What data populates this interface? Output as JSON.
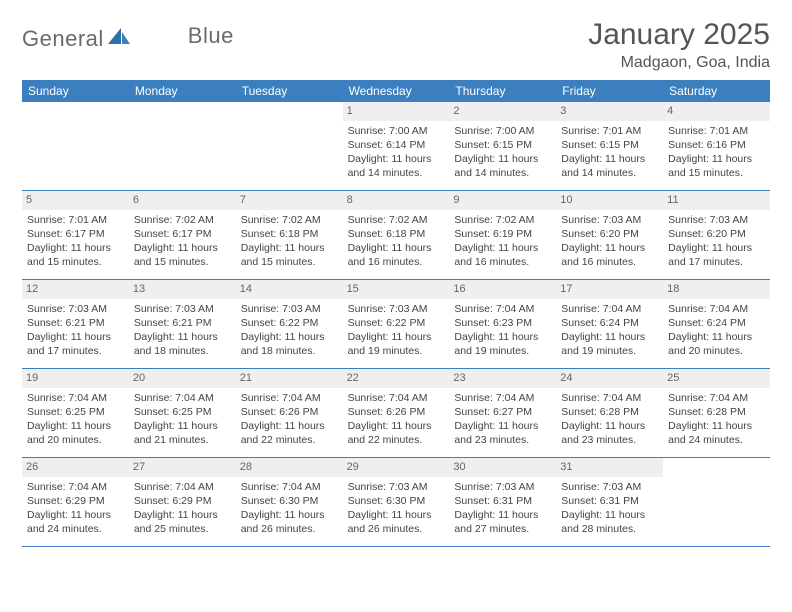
{
  "brand": {
    "word1": "General",
    "word2": "Blue"
  },
  "title": "January 2025",
  "location": "Madgaon, Goa, India",
  "colors": {
    "header_bg": "#3b7fbf",
    "header_fg": "#ffffff",
    "daynum_bg": "#efefef",
    "border": "#3b7fbf",
    "text": "#444444"
  },
  "day_names": [
    "Sunday",
    "Monday",
    "Tuesday",
    "Wednesday",
    "Thursday",
    "Friday",
    "Saturday"
  ],
  "weeks": [
    [
      {
        "n": "",
        "sr": "",
        "ss": "",
        "dl": "",
        "empty": true
      },
      {
        "n": "",
        "sr": "",
        "ss": "",
        "dl": "",
        "empty": true
      },
      {
        "n": "",
        "sr": "",
        "ss": "",
        "dl": "",
        "empty": true
      },
      {
        "n": "1",
        "sr": "Sunrise: 7:00 AM",
        "ss": "Sunset: 6:14 PM",
        "dl": "Daylight: 11 hours and 14 minutes."
      },
      {
        "n": "2",
        "sr": "Sunrise: 7:00 AM",
        "ss": "Sunset: 6:15 PM",
        "dl": "Daylight: 11 hours and 14 minutes."
      },
      {
        "n": "3",
        "sr": "Sunrise: 7:01 AM",
        "ss": "Sunset: 6:15 PM",
        "dl": "Daylight: 11 hours and 14 minutes."
      },
      {
        "n": "4",
        "sr": "Sunrise: 7:01 AM",
        "ss": "Sunset: 6:16 PM",
        "dl": "Daylight: 11 hours and 15 minutes."
      }
    ],
    [
      {
        "n": "5",
        "sr": "Sunrise: 7:01 AM",
        "ss": "Sunset: 6:17 PM",
        "dl": "Daylight: 11 hours and 15 minutes."
      },
      {
        "n": "6",
        "sr": "Sunrise: 7:02 AM",
        "ss": "Sunset: 6:17 PM",
        "dl": "Daylight: 11 hours and 15 minutes."
      },
      {
        "n": "7",
        "sr": "Sunrise: 7:02 AM",
        "ss": "Sunset: 6:18 PM",
        "dl": "Daylight: 11 hours and 15 minutes."
      },
      {
        "n": "8",
        "sr": "Sunrise: 7:02 AM",
        "ss": "Sunset: 6:18 PM",
        "dl": "Daylight: 11 hours and 16 minutes."
      },
      {
        "n": "9",
        "sr": "Sunrise: 7:02 AM",
        "ss": "Sunset: 6:19 PM",
        "dl": "Daylight: 11 hours and 16 minutes."
      },
      {
        "n": "10",
        "sr": "Sunrise: 7:03 AM",
        "ss": "Sunset: 6:20 PM",
        "dl": "Daylight: 11 hours and 16 minutes."
      },
      {
        "n": "11",
        "sr": "Sunrise: 7:03 AM",
        "ss": "Sunset: 6:20 PM",
        "dl": "Daylight: 11 hours and 17 minutes."
      }
    ],
    [
      {
        "n": "12",
        "sr": "Sunrise: 7:03 AM",
        "ss": "Sunset: 6:21 PM",
        "dl": "Daylight: 11 hours and 17 minutes."
      },
      {
        "n": "13",
        "sr": "Sunrise: 7:03 AM",
        "ss": "Sunset: 6:21 PM",
        "dl": "Daylight: 11 hours and 18 minutes."
      },
      {
        "n": "14",
        "sr": "Sunrise: 7:03 AM",
        "ss": "Sunset: 6:22 PM",
        "dl": "Daylight: 11 hours and 18 minutes."
      },
      {
        "n": "15",
        "sr": "Sunrise: 7:03 AM",
        "ss": "Sunset: 6:22 PM",
        "dl": "Daylight: 11 hours and 19 minutes."
      },
      {
        "n": "16",
        "sr": "Sunrise: 7:04 AM",
        "ss": "Sunset: 6:23 PM",
        "dl": "Daylight: 11 hours and 19 minutes."
      },
      {
        "n": "17",
        "sr": "Sunrise: 7:04 AM",
        "ss": "Sunset: 6:24 PM",
        "dl": "Daylight: 11 hours and 19 minutes."
      },
      {
        "n": "18",
        "sr": "Sunrise: 7:04 AM",
        "ss": "Sunset: 6:24 PM",
        "dl": "Daylight: 11 hours and 20 minutes."
      }
    ],
    [
      {
        "n": "19",
        "sr": "Sunrise: 7:04 AM",
        "ss": "Sunset: 6:25 PM",
        "dl": "Daylight: 11 hours and 20 minutes."
      },
      {
        "n": "20",
        "sr": "Sunrise: 7:04 AM",
        "ss": "Sunset: 6:25 PM",
        "dl": "Daylight: 11 hours and 21 minutes."
      },
      {
        "n": "21",
        "sr": "Sunrise: 7:04 AM",
        "ss": "Sunset: 6:26 PM",
        "dl": "Daylight: 11 hours and 22 minutes."
      },
      {
        "n": "22",
        "sr": "Sunrise: 7:04 AM",
        "ss": "Sunset: 6:26 PM",
        "dl": "Daylight: 11 hours and 22 minutes."
      },
      {
        "n": "23",
        "sr": "Sunrise: 7:04 AM",
        "ss": "Sunset: 6:27 PM",
        "dl": "Daylight: 11 hours and 23 minutes."
      },
      {
        "n": "24",
        "sr": "Sunrise: 7:04 AM",
        "ss": "Sunset: 6:28 PM",
        "dl": "Daylight: 11 hours and 23 minutes."
      },
      {
        "n": "25",
        "sr": "Sunrise: 7:04 AM",
        "ss": "Sunset: 6:28 PM",
        "dl": "Daylight: 11 hours and 24 minutes."
      }
    ],
    [
      {
        "n": "26",
        "sr": "Sunrise: 7:04 AM",
        "ss": "Sunset: 6:29 PM",
        "dl": "Daylight: 11 hours and 24 minutes."
      },
      {
        "n": "27",
        "sr": "Sunrise: 7:04 AM",
        "ss": "Sunset: 6:29 PM",
        "dl": "Daylight: 11 hours and 25 minutes."
      },
      {
        "n": "28",
        "sr": "Sunrise: 7:04 AM",
        "ss": "Sunset: 6:30 PM",
        "dl": "Daylight: 11 hours and 26 minutes."
      },
      {
        "n": "29",
        "sr": "Sunrise: 7:03 AM",
        "ss": "Sunset: 6:30 PM",
        "dl": "Daylight: 11 hours and 26 minutes."
      },
      {
        "n": "30",
        "sr": "Sunrise: 7:03 AM",
        "ss": "Sunset: 6:31 PM",
        "dl": "Daylight: 11 hours and 27 minutes."
      },
      {
        "n": "31",
        "sr": "Sunrise: 7:03 AM",
        "ss": "Sunset: 6:31 PM",
        "dl": "Daylight: 11 hours and 28 minutes."
      },
      {
        "n": "",
        "sr": "",
        "ss": "",
        "dl": "",
        "empty": true
      }
    ]
  ]
}
